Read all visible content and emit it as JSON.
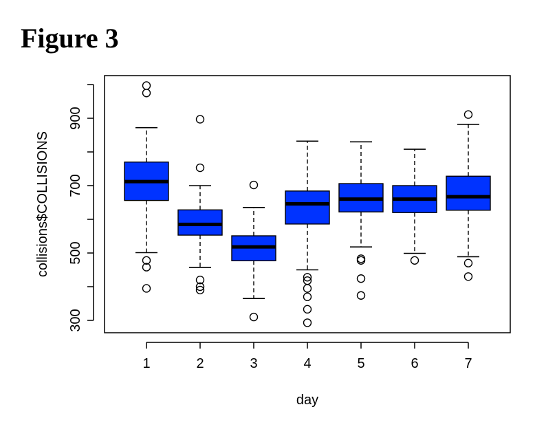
{
  "figure": {
    "title": "Figure 3"
  },
  "chart_data": {
    "type": "boxplot",
    "xlabel": "day",
    "ylabel": "collisions$COLLISIONS",
    "categories": [
      "1",
      "2",
      "3",
      "4",
      "5",
      "6",
      "7"
    ],
    "ylim": [
      265,
      1000
    ],
    "yticks": [
      300,
      500,
      700,
      900
    ],
    "box_color": "#0033ff",
    "boxes": [
      {
        "label": "1",
        "whisker_low": 501,
        "q1": 656,
        "median": 712,
        "q3": 770,
        "whisker_high": 872,
        "outliers": [
          395,
          458,
          478,
          975,
          997
        ]
      },
      {
        "label": "2",
        "whisker_low": 457,
        "q1": 553,
        "median": 585,
        "q3": 628,
        "whisker_high": 700,
        "outliers": [
          390,
          400,
          420,
          753,
          897
        ]
      },
      {
        "label": "3",
        "whisker_low": 365,
        "q1": 477,
        "median": 518,
        "q3": 551,
        "whisker_high": 635,
        "outliers": [
          310,
          702
        ]
      },
      {
        "label": "4",
        "whisker_low": 450,
        "q1": 586,
        "median": 646,
        "q3": 684,
        "whisker_high": 832,
        "outliers": [
          293,
          333,
          370,
          395,
          418,
          428
        ]
      },
      {
        "label": "5",
        "whisker_low": 518,
        "q1": 622,
        "median": 660,
        "q3": 706,
        "whisker_high": 830,
        "outliers": [
          374,
          424,
          478,
          483
        ]
      },
      {
        "label": "6",
        "whisker_low": 499,
        "q1": 620,
        "median": 660,
        "q3": 700,
        "whisker_high": 808,
        "outliers": [
          478
        ]
      },
      {
        "label": "7",
        "whisker_low": 489,
        "q1": 627,
        "median": 667,
        "q3": 728,
        "whisker_high": 882,
        "outliers": [
          430,
          470,
          911
        ]
      }
    ]
  }
}
